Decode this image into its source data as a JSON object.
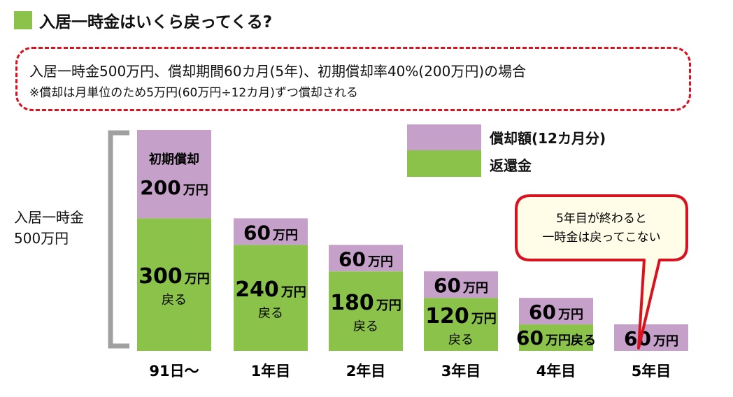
{
  "header": {
    "title": "入居一時金はいくら戻ってくる?"
  },
  "conditions": {
    "line1": "入居一時金500万円、償却期間60カ月(5年)、初期償却率40%(200万円)の場合",
    "line2": "※償却は月単位のため5万円(60万円÷12カ月)ずつ償却される"
  },
  "colors": {
    "accent": "#8bc34a",
    "amortized": "#c5a0c8",
    "refund": "#8bc34a",
    "callout_border": "#d9121f",
    "callout_fill": "#fffde8"
  },
  "chart_data": {
    "type": "bar",
    "stacked": true,
    "ylabel_lines": [
      "入居一時金",
      "500万円"
    ],
    "total": 500,
    "unit": "万円",
    "categories": [
      "91日〜",
      "1年目",
      "2年目",
      "3年目",
      "4年目",
      "5年目"
    ],
    "series": [
      {
        "name": "返還金",
        "values": [
          300,
          240,
          180,
          120,
          60,
          0
        ]
      },
      {
        "name": "償却額(12カ月分)",
        "values": [
          200,
          60,
          60,
          60,
          60,
          60
        ]
      }
    ],
    "bar_labels": [
      {
        "amortized_note": "初期償却",
        "amortized": "200",
        "amortized_unit": "万円",
        "refund": "300",
        "refund_unit": "万円",
        "refund_note": "戻る"
      },
      {
        "amortized": "60",
        "amortized_unit": "万円",
        "refund": "240",
        "refund_unit": "万円",
        "refund_note": "戻る"
      },
      {
        "amortized": "60",
        "amortized_unit": "万円",
        "refund": "180",
        "refund_unit": "万円",
        "refund_note": "戻る"
      },
      {
        "amortized": "60",
        "amortized_unit": "万円",
        "refund": "120",
        "refund_unit": "万円",
        "refund_note": "戻る"
      },
      {
        "amortized": "60",
        "amortized_unit": "万円",
        "refund": "60",
        "refund_unit": "万円戻る"
      },
      {
        "amortized": "60",
        "amortized_unit": "万円"
      }
    ],
    "legend": [
      "償却額(12カ月分)",
      "返還金"
    ],
    "legend_position": "top-right",
    "annotation": {
      "line1": "5年目が終わると",
      "line2": "一時金は戻ってこない"
    }
  }
}
